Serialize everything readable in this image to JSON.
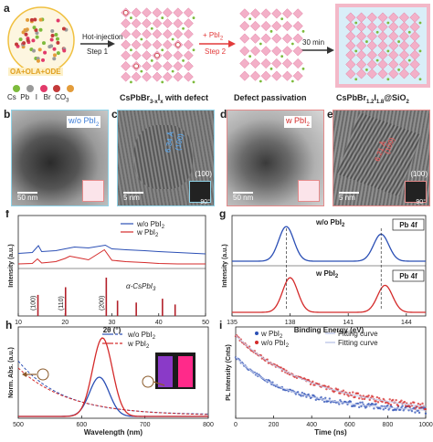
{
  "panel_a": {
    "label": "a",
    "hot_injection": "Hot-injection",
    "step1": "Step 1",
    "pbi2": "+ PbI",
    "pbi2_sub": "2",
    "step2": "Step 2",
    "time": "30 min",
    "solvent_box": "OA+OLA+ODE",
    "legend": [
      "Cs",
      "Pb",
      "I",
      "Br",
      "CO",
      "3"
    ],
    "caption1": "CsPbBr",
    "caption1_sub": "3-x",
    "caption1_i": "I",
    "caption1_isub": "x",
    "caption1_rest": " with defect",
    "caption2": "Defect passivation",
    "caption3": "CsPbBr",
    "caption3_sub": "1.2",
    "caption3_i": "I",
    "caption3_isub": "1.8",
    "caption3_rest": "@SiO",
    "caption3_sub2": "2"
  },
  "panel_b": {
    "label": "b",
    "tag": "w/o PbI",
    "tag_sub": "2",
    "scale": "50 nm"
  },
  "panel_c": {
    "label": "c",
    "lattice": "6.34 Å",
    "plane": "(100)",
    "plane2": "(100)",
    "angle": "90°",
    "scale": "5 nm"
  },
  "panel_d": {
    "label": "d",
    "tag": "w PbI",
    "tag_sub": "2",
    "scale": "50 nm"
  },
  "panel_e": {
    "label": "e",
    "lattice": "6.21 Å",
    "plane": "(100)",
    "plane2": "(100)",
    "angle": "90°",
    "scale": "5 nm"
  },
  "colors": {
    "blue": "#2b4fb5",
    "red": "#d42a2a",
    "cyan_border": "#8fd3e8",
    "pink_border": "#e58a8a"
  },
  "chart_data": [
    {
      "panel": "f",
      "type": "line",
      "xlabel": "2θ (°)",
      "ylabel": "Intensity (a.u.)",
      "xlim": [
        10,
        50
      ],
      "xticks": [
        "10",
        "20",
        "30",
        "40",
        "50"
      ],
      "series": [
        {
          "name": "w/o PbI2",
          "color": "#2b4fb5",
          "x": [
            10,
            13,
            14.3,
            15,
            18,
            20,
            21,
            22,
            25,
            28.6,
            30,
            33,
            37,
            40,
            44,
            48,
            50
          ],
          "y": [
            0.78,
            0.8,
            0.95,
            0.82,
            0.84,
            0.88,
            0.9,
            0.92,
            0.9,
            0.96,
            0.88,
            0.86,
            0.84,
            0.82,
            0.8,
            0.78,
            0.77
          ]
        },
        {
          "name": "w PbI2",
          "color": "#d42a2a",
          "x": [
            10,
            13,
            14.1,
            15,
            18,
            20,
            21,
            22,
            25,
            28.4,
            30,
            33,
            37,
            40,
            44,
            48,
            50
          ],
          "y": [
            0.55,
            0.56,
            0.66,
            0.57,
            0.6,
            0.67,
            0.72,
            0.7,
            0.64,
            0.86,
            0.63,
            0.6,
            0.58,
            0.56,
            0.55,
            0.55,
            0.55
          ]
        }
      ],
      "reference": {
        "name": "α-CsPbI3",
        "sticks": [
          {
            "x": 14.2,
            "h": 0.55,
            "label": "(100)"
          },
          {
            "x": 20.1,
            "h": 0.75,
            "label": "(110)"
          },
          {
            "x": 28.8,
            "h": 1.0,
            "label": "(200)"
          },
          {
            "x": 31.2,
            "h": 0.4,
            "label": ""
          },
          {
            "x": 35.2,
            "h": 0.35,
            "label": ""
          },
          {
            "x": 40.8,
            "h": 0.45,
            "label": ""
          },
          {
            "x": 43.5,
            "h": 0.3,
            "label": ""
          }
        ]
      },
      "legend_entries": [
        "w/o PbI",
        "w PbI"
      ]
    },
    {
      "panel": "g",
      "type": "line",
      "xlabel": "Binding Energy (eV)",
      "ylabel": "Intensity (a.u.)",
      "xlim": [
        135,
        145
      ],
      "xticks": [
        "135",
        "138",
        "141",
        "144"
      ],
      "tag": "Pb 4f",
      "series": [
        {
          "name": "w/o PbI2",
          "color": "#2b4fb5",
          "peaks": [
            137.8,
            142.7
          ],
          "heights": [
            1.0,
            0.78
          ]
        },
        {
          "name": "w PbI2",
          "color": "#d42a2a",
          "peaks": [
            138.0,
            142.9
          ],
          "heights": [
            1.0,
            0.78
          ]
        }
      ],
      "labels": [
        "w/o PbI",
        "w PbI"
      ]
    },
    {
      "panel": "h",
      "type": "line",
      "xlabel": "Wavelength (nm)",
      "ylabel": "Norm. Abs. (a.u.)",
      "xlim": [
        500,
        800
      ],
      "xticks": [
        "500",
        "600",
        "700",
        "800"
      ],
      "series": [
        {
          "name": "w/o PbI2",
          "color": "#2b4fb5",
          "pl_peak": 628,
          "pl_height": 0.5
        },
        {
          "name": "w PbI2",
          "color": "#d42a2a",
          "pl_peak": 633,
          "pl_height": 1.0
        }
      ],
      "legend_entries": [
        "w/o PbI",
        "w PbI"
      ]
    },
    {
      "panel": "i",
      "type": "line",
      "xlabel": "Time (ns)",
      "ylabel": "PL Intensity (Cnts)",
      "xlim": [
        0,
        1000
      ],
      "xticks": [
        "0",
        "200",
        "400",
        "600",
        "800",
        "1000"
      ],
      "series": [
        {
          "name": "w PbI2",
          "color": "#2b4fb5",
          "decay": 0.7
        },
        {
          "name": "w/o PbI2",
          "color": "#d42a2a",
          "decay": 0.45
        }
      ],
      "legend_entries": [
        "w PbI",
        "w/o PbI",
        "Fitting curve",
        "Fitting curve"
      ]
    }
  ]
}
